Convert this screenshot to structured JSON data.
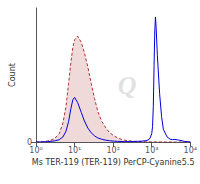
{
  "chart_data": {
    "type": "line",
    "xlabel": "Ms TER-119 (TER-119) PerCP-Cyanine5.5",
    "ylabel": "Count",
    "log": "x",
    "xlim": [
      1,
      10000
    ],
    "xticks": [
      {
        "value": 1,
        "label": "10⁰"
      },
      {
        "value": 10,
        "label": "10¹"
      },
      {
        "value": 100,
        "label": "10²"
      },
      {
        "value": 1000,
        "label": "10³"
      },
      {
        "value": 10000,
        "label": "10⁴"
      }
    ],
    "ylim": [
      0,
      1050
    ],
    "yticks": [
      0
    ],
    "grid": false,
    "series": [
      {
        "type": "area",
        "color": "#990000",
        "line_style": "dashed",
        "x": [
          1.0,
          1.5,
          2.0,
          3.0,
          4.0,
          5.0,
          6.0,
          7.0,
          8.0,
          9.0,
          10.0,
          12.0,
          15.0,
          18.0,
          22.0,
          27.0,
          33.0,
          40.0,
          50.0,
          65.0,
          80.0,
          100.0,
          130.0,
          160.0,
          200.0,
          260.0,
          330.0,
          420.0,
          550.0,
          700.0,
          1000.0,
          2000.0,
          5000.0,
          10000.0
        ],
        "values": [
          0,
          2,
          8,
          25,
          65,
          150,
          280,
          460,
          620,
          740,
          800,
          830,
          780,
          700,
          590,
          460,
          340,
          240,
          165,
          110,
          75,
          52,
          33,
          22,
          14,
          9,
          6,
          4,
          3,
          2,
          1,
          0,
          0,
          0
        ]
      },
      {
        "type": "line",
        "color": "#0000dd",
        "line_style": "solid",
        "x": [
          1.0,
          1.5,
          2.0,
          3.0,
          4.0,
          5.0,
          6.0,
          7.0,
          8.0,
          9.0,
          10.0,
          12.0,
          15.0,
          18.0,
          22.0,
          27.0,
          33.0,
          40.0,
          50.0,
          65.0,
          80.0,
          100.0,
          130.0,
          160.0,
          200.0,
          260.0,
          330.0,
          420.0,
          550.0,
          700.0,
          800.0,
          900.0,
          1000.0,
          1050.0,
          1100.0,
          1150.0,
          1200.0,
          1250.0,
          1300.0,
          1400.0,
          1600.0,
          1800.0,
          2000.0,
          2500.0,
          3000.0,
          3500.0,
          4000.0,
          5000.0,
          7000.0,
          10000.0
        ],
        "values": [
          0,
          1,
          3,
          8,
          18,
          40,
          85,
          160,
          260,
          330,
          350,
          310,
          230,
          165,
          110,
          72,
          48,
          32,
          22,
          14,
          10,
          7,
          5,
          4,
          3,
          3,
          4,
          5,
          7,
          10,
          15,
          28,
          65,
          120,
          280,
          600,
          870,
          980,
          900,
          680,
          380,
          200,
          100,
          40,
          22,
          18,
          20,
          15,
          5,
          0
        ]
      }
    ],
    "annotations": [
      {
        "text": "Q",
        "color": "#c8c8c8"
      }
    ]
  }
}
